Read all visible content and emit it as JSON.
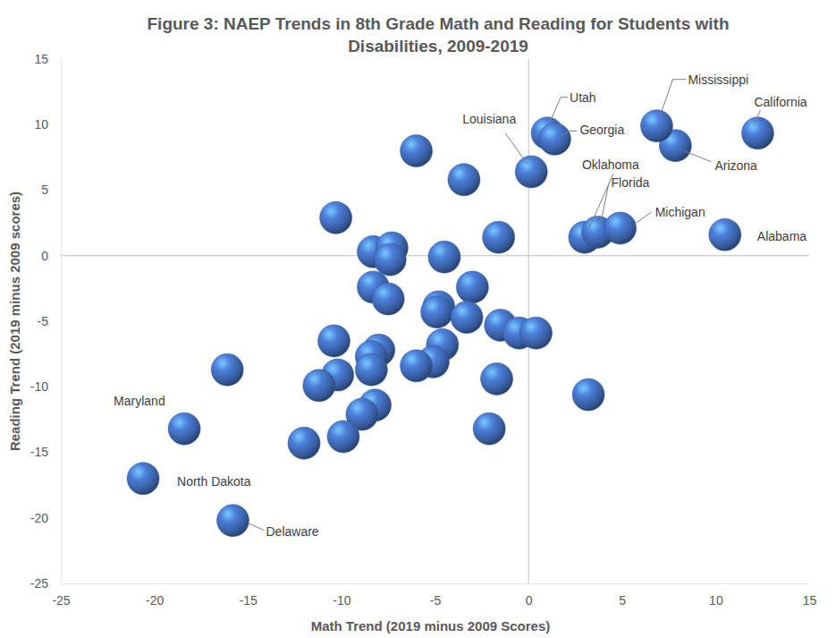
{
  "chart_data": {
    "type": "scatter",
    "title": "Figure 3: NAEP Trends in 8th Grade Math and Reading for Students with\nDisabilities, 2009-2019",
    "x_label": "Math Trend (2019 minus 2009 Scores)",
    "y_label": "Reading Trend (2019 minus 2009 scores)",
    "color": "#4472c4",
    "marker": "sphere",
    "grid": false,
    "xlim": [
      -25,
      15
    ],
    "ylim": [
      -25,
      15
    ],
    "xticks": [
      -25,
      -20,
      -15,
      -10,
      -5,
      0,
      5,
      10,
      15
    ],
    "yticks": [
      -25,
      -20,
      -15,
      -10,
      -5,
      0,
      5,
      10,
      15
    ],
    "labels": [
      "California",
      "Arizona",
      "Mississippi",
      "Utah",
      "Georgia",
      "Louisiana",
      "Oklahoma",
      "Florida",
      "Michigan",
      "Alabama",
      "Maryland",
      "North Dakota",
      "Delaware",
      null,
      null,
      null,
      null,
      null,
      null,
      null,
      null,
      null,
      null,
      null,
      null,
      null,
      null,
      null,
      null,
      null,
      null,
      null,
      null,
      null,
      null,
      null,
      null,
      null,
      null,
      null,
      null,
      null,
      null,
      null,
      null,
      null,
      null
    ],
    "x": [
      12.25,
      7.85,
      6.85,
      1.0,
      1.4,
      0.15,
      3.0,
      3.7,
      4.9,
      10.5,
      -18.4,
      -20.6,
      -15.8,
      -6.0,
      -3.45,
      -10.3,
      -1.6,
      -8.3,
      -7.3,
      -7.4,
      -4.5,
      -8.3,
      -7.5,
      -3.0,
      -4.8,
      -4.9,
      -3.3,
      -1.5,
      -0.5,
      0.4,
      -10.4,
      -4.6,
      -8.0,
      -8.4,
      -8.4,
      -5.1,
      -6.0,
      -16.1,
      -10.2,
      -11.2,
      -1.7,
      3.2,
      -8.2,
      -8.9,
      -9.9,
      -12.0,
      -2.1
    ],
    "values": [
      9.35,
      8.4,
      9.9,
      9.35,
      8.9,
      6.4,
      1.4,
      1.8,
      2.1,
      1.6,
      -13.2,
      -17.0,
      -20.2,
      8.0,
      5.8,
      2.9,
      1.4,
      0.3,
      0.6,
      -0.3,
      -0.1,
      -2.4,
      -3.3,
      -2.4,
      -3.9,
      -4.3,
      -4.7,
      -5.3,
      -5.9,
      -5.9,
      -6.5,
      -6.8,
      -7.2,
      -7.7,
      -8.7,
      -8.1,
      -8.4,
      -8.7,
      -9.1,
      -9.9,
      -9.4,
      -10.6,
      -11.4,
      -12.1,
      -13.8,
      -14.3,
      -13.2
    ]
  }
}
